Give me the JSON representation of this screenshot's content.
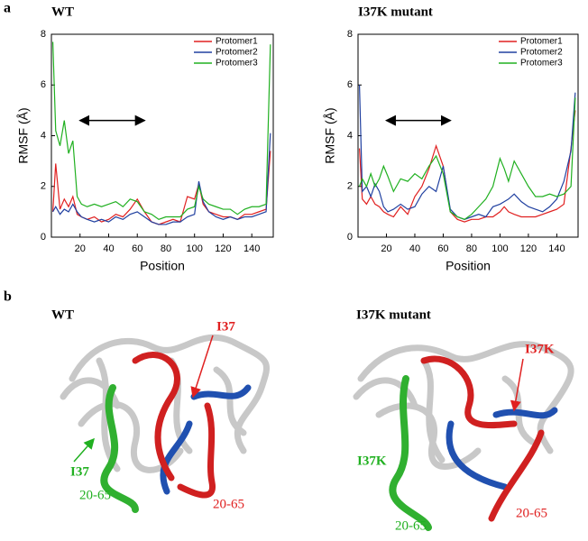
{
  "chart_data": [
    {
      "type": "line",
      "panel": "a",
      "title": "WT",
      "xlabel": "Position",
      "ylabel": "RMSF (Å)",
      "x": [
        1,
        3,
        6,
        9,
        12,
        15,
        18,
        21,
        25,
        30,
        35,
        40,
        45,
        50,
        55,
        60,
        65,
        70,
        75,
        80,
        85,
        90,
        95,
        100,
        103,
        106,
        110,
        115,
        120,
        125,
        130,
        135,
        140,
        145,
        150,
        153
      ],
      "series": [
        {
          "name": "Protomer1",
          "color": "#e02020",
          "values": [
            1.0,
            2.9,
            1.1,
            1.5,
            1.2,
            1.6,
            0.9,
            0.8,
            0.7,
            0.8,
            0.6,
            0.7,
            0.9,
            0.8,
            1.1,
            1.5,
            1.0,
            0.6,
            0.5,
            0.6,
            0.7,
            0.6,
            1.6,
            1.5,
            2.1,
            1.3,
            1.0,
            0.9,
            0.8,
            0.8,
            0.7,
            0.9,
            0.9,
            1.0,
            1.1,
            3.4
          ]
        },
        {
          "name": "Protomer2",
          "color": "#2040a0",
          "values": [
            1.0,
            1.2,
            0.9,
            1.1,
            1.0,
            1.3,
            1.0,
            0.8,
            0.7,
            0.6,
            0.7,
            0.6,
            0.8,
            0.7,
            0.9,
            1.0,
            0.8,
            0.6,
            0.5,
            0.5,
            0.6,
            0.6,
            0.8,
            0.9,
            2.2,
            1.4,
            1.0,
            0.8,
            0.7,
            0.8,
            0.7,
            0.8,
            0.8,
            0.9,
            1.0,
            4.1
          ]
        },
        {
          "name": "Protomer3",
          "color": "#20b020",
          "values": [
            7.7,
            4.2,
            3.6,
            4.6,
            3.3,
            3.8,
            1.6,
            1.3,
            1.2,
            1.3,
            1.2,
            1.3,
            1.4,
            1.2,
            1.5,
            1.4,
            1.0,
            0.9,
            0.7,
            0.8,
            0.8,
            0.8,
            1.1,
            1.2,
            2.0,
            1.5,
            1.3,
            1.2,
            1.1,
            1.1,
            0.9,
            1.1,
            1.2,
            1.2,
            1.3,
            7.6
          ]
        }
      ],
      "xlim": [
        0,
        155
      ],
      "xticks": [
        20,
        40,
        60,
        80,
        100,
        120,
        140
      ],
      "ylim": [
        0,
        8
      ],
      "yticks": [
        0,
        2,
        4,
        6,
        8
      ],
      "legend": "upper-right",
      "range_arrow": {
        "x": [
          20,
          65
        ],
        "y": 4.6
      }
    },
    {
      "type": "line",
      "title": "I37K mutant",
      "xlabel": "Position",
      "ylabel": "RMSF (Å)",
      "x": [
        1,
        3,
        6,
        9,
        12,
        15,
        18,
        21,
        25,
        30,
        35,
        40,
        45,
        50,
        55,
        60,
        65,
        70,
        75,
        80,
        85,
        90,
        95,
        100,
        103,
        106,
        110,
        115,
        120,
        125,
        130,
        135,
        140,
        145,
        150,
        153
      ],
      "series": [
        {
          "name": "Protomer1",
          "color": "#e02020",
          "values": [
            3.5,
            1.5,
            1.3,
            1.6,
            1.3,
            1.2,
            1.0,
            0.9,
            0.8,
            1.2,
            0.9,
            1.6,
            2.0,
            2.7,
            3.6,
            2.8,
            1.0,
            0.7,
            0.6,
            0.7,
            0.7,
            0.8,
            0.8,
            1.0,
            1.2,
            1.0,
            0.9,
            0.8,
            0.8,
            0.8,
            0.9,
            1.0,
            1.1,
            1.3,
            3.5,
            5.0
          ]
        },
        {
          "name": "Protomer2",
          "color": "#2040a0",
          "values": [
            6.0,
            1.8,
            2.0,
            1.6,
            2.1,
            1.8,
            1.2,
            1.0,
            1.1,
            1.3,
            1.1,
            1.2,
            1.7,
            2.0,
            1.8,
            2.8,
            1.1,
            0.8,
            0.7,
            0.8,
            0.9,
            0.8,
            1.2,
            1.3,
            1.4,
            1.5,
            1.7,
            1.4,
            1.2,
            1.1,
            1.0,
            1.2,
            1.5,
            2.2,
            3.4,
            5.7
          ]
        },
        {
          "name": "Protomer3",
          "color": "#20b020",
          "values": [
            2.0,
            2.3,
            2.0,
            2.5,
            2.0,
            2.3,
            2.8,
            2.4,
            1.8,
            2.3,
            2.2,
            2.5,
            2.3,
            2.8,
            3.2,
            2.5,
            1.0,
            0.8,
            0.7,
            0.9,
            1.2,
            1.5,
            2.0,
            3.1,
            2.7,
            2.2,
            3.0,
            2.5,
            2.0,
            1.6,
            1.6,
            1.7,
            1.6,
            1.7,
            2.0,
            5.5
          ]
        }
      ],
      "xlim": [
        0,
        155
      ],
      "xticks": [
        20,
        40,
        60,
        80,
        100,
        120,
        140
      ],
      "ylim": [
        0,
        8
      ],
      "yticks": [
        0,
        2,
        4,
        6,
        8
      ],
      "legend": "upper-right",
      "range_arrow": {
        "x": [
          20,
          65
        ],
        "y": 4.6
      }
    }
  ],
  "structures": {
    "panel": "b",
    "wt": {
      "title": "WT",
      "mutation_red": "I37",
      "mutation_green": "I37",
      "region_green": "20-65",
      "region_red": "20-65"
    },
    "mutant": {
      "title": "I37K mutant",
      "mutation_red": "I37K",
      "mutation_green": "I37K",
      "region_green": "20-65",
      "region_red": "20-65"
    }
  }
}
